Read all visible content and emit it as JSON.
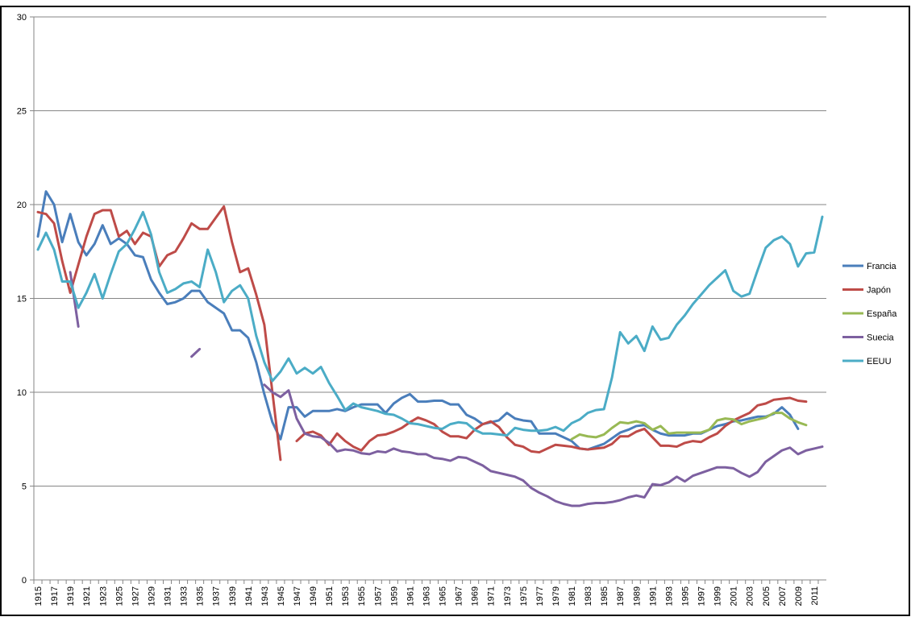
{
  "chart_data": {
    "type": "line",
    "categories": [
      "1915",
      null,
      "1917",
      null,
      "1919",
      null,
      "1921",
      null,
      "1923",
      null,
      "1925",
      null,
      "1927",
      null,
      "1929",
      null,
      "1931",
      null,
      "1933",
      null,
      "1935",
      null,
      "1937",
      null,
      "1939",
      null,
      "1941",
      null,
      "1943",
      null,
      "1945",
      null,
      "1947",
      null,
      "1949",
      null,
      "1951",
      null,
      "1953",
      null,
      "1955",
      null,
      "1957",
      null,
      "1959",
      null,
      "1961",
      null,
      "1963",
      null,
      "1965",
      null,
      "1967",
      null,
      "1969",
      null,
      "1971",
      null,
      "1973",
      null,
      "1975",
      null,
      "1977",
      null,
      "1979",
      null,
      "1981",
      null,
      "1983",
      null,
      "1985",
      null,
      "1987",
      null,
      "1989",
      null,
      "1991",
      null,
      "1993",
      null,
      "1995",
      null,
      "1997",
      null,
      "1999",
      null,
      "2001",
      null,
      "2003",
      null,
      "2005",
      null,
      "2007",
      null,
      "2009",
      null,
      "2011",
      null
    ],
    "series": [
      {
        "name": "Francia",
        "color": "#4a7ebb",
        "values": [
          18.3,
          20.7,
          20.0,
          18.0,
          19.5,
          18.0,
          17.3,
          17.9,
          18.9,
          17.9,
          18.2,
          17.9,
          17.3,
          17.2,
          16.0,
          15.3,
          14.7,
          14.8,
          15.0,
          15.4,
          15.4,
          14.8,
          14.5,
          14.2,
          13.3,
          13.3,
          12.9,
          11.6,
          9.9,
          8.4,
          7.5,
          9.2,
          9.2,
          8.7,
          9.0,
          9.0,
          9.0,
          9.1,
          9.0,
          9.2,
          9.35,
          9.35,
          9.35,
          8.9,
          9.4,
          9.7,
          9.9,
          9.5,
          9.5,
          9.55,
          9.55,
          9.35,
          9.35,
          8.8,
          8.6,
          8.3,
          8.4,
          8.5,
          8.9,
          8.6,
          8.5,
          8.45,
          7.8,
          7.8,
          7.8,
          7.6,
          7.4,
          7.0,
          6.95,
          7.1,
          7.25,
          7.55,
          7.85,
          8.0,
          8.2,
          8.25,
          8.0,
          7.8,
          7.7,
          7.7,
          7.7,
          7.8,
          7.8,
          8.0,
          8.2,
          8.3,
          8.45,
          8.5,
          8.6,
          8.7,
          8.7,
          8.85,
          9.2,
          8.8,
          8.05,
          null,
          null,
          null
        ]
      },
      {
        "name": "Japón",
        "color": "#be4b48",
        "values": [
          19.6,
          19.5,
          19.0,
          17.0,
          15.3,
          16.8,
          18.3,
          19.5,
          19.7,
          19.7,
          18.3,
          18.6,
          17.9,
          18.5,
          18.3,
          16.7,
          17.3,
          17.5,
          18.2,
          19.0,
          18.7,
          18.7,
          19.3,
          19.9,
          18.0,
          16.4,
          16.6,
          15.2,
          13.6,
          10.0,
          6.4,
          null,
          7.4,
          7.8,
          7.9,
          7.7,
          7.2,
          7.8,
          7.4,
          7.1,
          6.9,
          7.4,
          7.7,
          7.75,
          7.9,
          8.1,
          8.4,
          8.65,
          8.5,
          8.3,
          7.9,
          7.65,
          7.65,
          7.55,
          8.0,
          8.3,
          8.45,
          8.15,
          7.6,
          7.2,
          7.1,
          6.85,
          6.8,
          7.0,
          7.2,
          7.15,
          7.1,
          7.0,
          6.95,
          7.0,
          7.05,
          7.25,
          7.65,
          7.65,
          7.9,
          8.05,
          7.6,
          7.15,
          7.15,
          7.1,
          7.3,
          7.4,
          7.35,
          7.6,
          7.8,
          8.2,
          8.5,
          8.7,
          8.9,
          9.3,
          9.4,
          9.6,
          9.65,
          9.7,
          9.55,
          9.5,
          null,
          null
        ]
      },
      {
        "name": "España",
        "color": "#98b954",
        "values": [
          null,
          null,
          null,
          null,
          null,
          null,
          null,
          null,
          null,
          null,
          null,
          null,
          null,
          null,
          null,
          null,
          null,
          null,
          null,
          null,
          null,
          null,
          null,
          null,
          null,
          null,
          null,
          null,
          null,
          null,
          null,
          null,
          null,
          null,
          null,
          null,
          null,
          null,
          null,
          null,
          null,
          null,
          null,
          null,
          null,
          null,
          null,
          null,
          null,
          null,
          null,
          null,
          null,
          null,
          null,
          null,
          null,
          null,
          null,
          null,
          null,
          null,
          null,
          null,
          null,
          null,
          7.5,
          7.75,
          7.65,
          7.6,
          7.75,
          8.1,
          8.4,
          8.35,
          8.45,
          8.35,
          8.0,
          8.2,
          7.8,
          7.85,
          7.85,
          7.85,
          7.85,
          8.0,
          8.5,
          8.6,
          8.55,
          8.3,
          8.45,
          8.55,
          8.65,
          8.9,
          8.9,
          8.6,
          8.4,
          8.25,
          null,
          null
        ]
      },
      {
        "name": "Suecia",
        "color": "#7d60a0",
        "values": [
          null,
          null,
          null,
          null,
          16.4,
          13.5,
          null,
          null,
          null,
          null,
          null,
          null,
          null,
          null,
          null,
          null,
          null,
          null,
          null,
          11.9,
          12.3,
          null,
          null,
          null,
          null,
          null,
          null,
          null,
          10.4,
          10.0,
          9.75,
          10.1,
          8.6,
          7.8,
          7.65,
          7.6,
          7.3,
          6.85,
          6.95,
          6.9,
          6.75,
          6.7,
          6.85,
          6.8,
          7.0,
          6.85,
          6.8,
          6.7,
          6.7,
          6.5,
          6.45,
          6.35,
          6.55,
          6.5,
          6.3,
          6.1,
          5.8,
          5.7,
          5.6,
          5.5,
          5.3,
          4.9,
          4.65,
          4.45,
          4.2,
          4.05,
          3.95,
          3.95,
          4.05,
          4.1,
          4.1,
          4.15,
          4.25,
          4.4,
          4.5,
          4.4,
          5.1,
          5.05,
          5.2,
          5.5,
          5.25,
          5.55,
          5.7,
          5.85,
          6.0,
          6.0,
          5.95,
          5.7,
          5.5,
          5.75,
          6.3,
          6.6,
          6.9,
          7.05,
          6.7,
          6.9,
          7.0,
          7.1
        ]
      },
      {
        "name": "EEUU",
        "color": "#4bacc6",
        "values": [
          17.6,
          18.5,
          17.6,
          15.9,
          15.9,
          14.5,
          15.3,
          16.3,
          15.0,
          16.3,
          17.5,
          17.9,
          18.7,
          19.6,
          18.4,
          16.4,
          15.3,
          15.5,
          15.8,
          15.9,
          15.6,
          17.6,
          16.4,
          14.8,
          15.4,
          15.7,
          15.0,
          13.0,
          11.6,
          10.6,
          11.1,
          11.8,
          11.0,
          11.3,
          11.0,
          11.35,
          10.5,
          9.8,
          9.05,
          9.4,
          9.2,
          9.1,
          9.0,
          8.85,
          8.8,
          8.6,
          8.35,
          8.3,
          8.2,
          8.1,
          8.05,
          8.3,
          8.4,
          8.35,
          8.0,
          7.8,
          7.8,
          7.75,
          7.7,
          8.1,
          8.0,
          7.95,
          7.95,
          8.0,
          8.15,
          7.95,
          8.35,
          8.55,
          8.9,
          9.05,
          9.1,
          10.8,
          13.2,
          12.6,
          13.0,
          12.2,
          13.5,
          12.8,
          12.9,
          13.6,
          14.1,
          14.7,
          15.2,
          15.7,
          16.1,
          16.5,
          15.4,
          15.1,
          15.25,
          16.5,
          17.7,
          18.1,
          18.3,
          17.9,
          16.7,
          17.4,
          17.45,
          19.35
        ]
      }
    ],
    "ylim": [
      0,
      30
    ],
    "yticks": [
      0,
      5,
      10,
      15,
      20,
      25,
      30
    ],
    "grid": true,
    "legend": "right"
  }
}
